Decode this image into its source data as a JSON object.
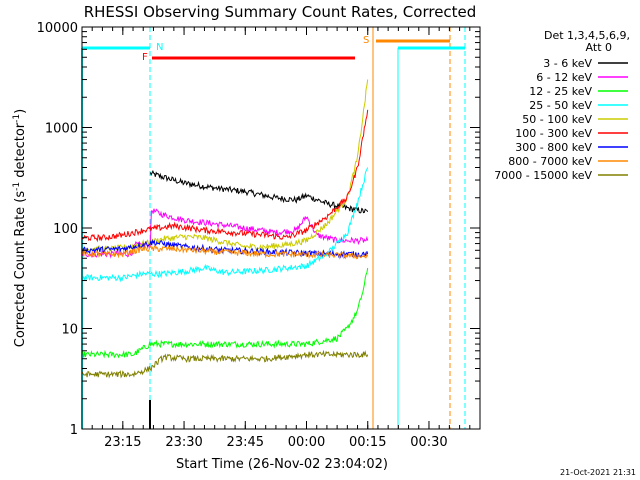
{
  "chart_data": {
    "type": "line",
    "title": "RHESSI Observing Summary Count Rates, Corrected",
    "xlabel": "Start Time (26-Nov-02 23:04:02)",
    "ylabel_main": "Corrected Count Rate (s",
    "ylabel_sup1": "-1",
    "ylabel_mid": " detector",
    "ylabel_sup2": "-1",
    "ylabel_end": ")",
    "y_scale": "log",
    "ylim": [
      1,
      10000
    ],
    "xlim_minutes": [
      0,
      39
    ],
    "x_ticks": [
      {
        "m": 4,
        "label": "23:15"
      },
      {
        "m": 10,
        "label": "23:30"
      },
      {
        "m": 16,
        "label": "23:45"
      },
      {
        "m": 22,
        "label": "00:00"
      },
      {
        "m": 28,
        "label": "00:15"
      },
      {
        "m": 34,
        "label": "00:30"
      }
    ],
    "y_ticks": [
      {
        "v": 1,
        "label": "1"
      },
      {
        "v": 10,
        "label": "10"
      },
      {
        "v": 100,
        "label": "100"
      },
      {
        "v": 1000,
        "label": "1000"
      },
      {
        "v": 10000,
        "label": "10000"
      }
    ],
    "legend_header": [
      "Det 1,3,4,5,6,9,",
      "Att 0"
    ],
    "series": [
      {
        "name": "3 - 6 keV",
        "color": "#000000",
        "points": [
          [
            6.7,
            350
          ],
          [
            8,
            320
          ],
          [
            10,
            280
          ],
          [
            13,
            250
          ],
          [
            16,
            230
          ],
          [
            19,
            200
          ],
          [
            21,
            190
          ],
          [
            22,
            210
          ],
          [
            24,
            175
          ],
          [
            27,
            150
          ],
          [
            28,
            145
          ]
        ]
      },
      {
        "name": "6 - 12 keV",
        "color": "#ff00ff",
        "points": [
          [
            0,
            55
          ],
          [
            4.8,
            55
          ],
          [
            5.2,
            68
          ],
          [
            6.7,
            68
          ],
          [
            6.8,
            150
          ],
          [
            8,
            135
          ],
          [
            10,
            120
          ],
          [
            13,
            110
          ],
          [
            16,
            100
          ],
          [
            19,
            90
          ],
          [
            21,
            95
          ],
          [
            22,
            130
          ],
          [
            23,
            85
          ],
          [
            25,
            75
          ],
          [
            28,
            75
          ]
        ]
      },
      {
        "name": "12 - 25 keV",
        "color": "#00ff00",
        "points": [
          [
            0,
            5.5
          ],
          [
            5,
            5.5
          ],
          [
            6.7,
            7
          ],
          [
            10,
            7
          ],
          [
            16,
            7
          ],
          [
            22,
            7
          ],
          [
            25,
            8
          ],
          [
            26,
            10
          ],
          [
            27,
            15
          ],
          [
            27.6,
            25
          ],
          [
            28,
            40
          ]
        ]
      },
      {
        "name": "25 - 50 keV",
        "color": "#00ffff",
        "points": [
          [
            0,
            32
          ],
          [
            4,
            32
          ],
          [
            6,
            35
          ],
          [
            8,
            35
          ],
          [
            10,
            37
          ],
          [
            12,
            40
          ],
          [
            14,
            36
          ],
          [
            18,
            38
          ],
          [
            22,
            42
          ],
          [
            24,
            55
          ],
          [
            26,
            90
          ],
          [
            27,
            180
          ],
          [
            28,
            400
          ]
        ]
      },
      {
        "name": "50 - 100 keV",
        "color": "#cccc00",
        "points": [
          [
            0,
            62
          ],
          [
            3,
            62
          ],
          [
            5,
            66
          ],
          [
            8,
            78
          ],
          [
            10,
            82
          ],
          [
            12,
            80
          ],
          [
            14,
            72
          ],
          [
            16,
            65
          ],
          [
            18,
            65
          ],
          [
            20,
            68
          ],
          [
            22,
            75
          ],
          [
            24,
            110
          ],
          [
            26,
            200
          ],
          [
            27,
            500
          ],
          [
            28,
            3000
          ]
        ]
      },
      {
        "name": "100 - 300 keV",
        "color": "#ff0000",
        "points": [
          [
            0,
            80
          ],
          [
            2,
            80
          ],
          [
            4,
            85
          ],
          [
            6,
            95
          ],
          [
            9,
            105
          ],
          [
            12,
            95
          ],
          [
            14,
            92
          ],
          [
            16,
            88
          ],
          [
            18,
            85
          ],
          [
            20,
            80
          ],
          [
            22,
            95
          ],
          [
            24,
            130
          ],
          [
            26,
            200
          ],
          [
            27,
            400
          ],
          [
            28,
            1500
          ]
        ]
      },
      {
        "name": "300 - 800 keV",
        "color": "#0000ff",
        "points": [
          [
            0,
            60
          ],
          [
            4,
            62
          ],
          [
            7,
            72
          ],
          [
            10,
            65
          ],
          [
            14,
            60
          ],
          [
            18,
            58
          ],
          [
            22,
            56
          ],
          [
            26,
            55
          ],
          [
            28,
            55
          ]
        ]
      },
      {
        "name": "800 - 7000 keV",
        "color": "#ff8800",
        "points": [
          [
            0,
            55
          ],
          [
            4,
            55
          ],
          [
            6,
            62
          ],
          [
            9,
            62
          ],
          [
            13,
            58
          ],
          [
            18,
            55
          ],
          [
            24,
            54
          ],
          [
            28,
            52
          ]
        ]
      },
      {
        "name": "7000 - 15000 keV",
        "color": "#808000",
        "points": [
          [
            0,
            3.5
          ],
          [
            5,
            3.5
          ],
          [
            6.7,
            4
          ],
          [
            8,
            5.2
          ],
          [
            10,
            5
          ],
          [
            14,
            5
          ],
          [
            18,
            5
          ],
          [
            22,
            5.5
          ],
          [
            26,
            5.5
          ],
          [
            28,
            5.5
          ]
        ]
      }
    ],
    "flags": [
      {
        "label": "N",
        "color": "#00ffff"
      },
      {
        "label": "F",
        "color": "#ff0000"
      },
      {
        "label": "S",
        "color": "#ff8800"
      }
    ],
    "timestamp": "21-Oct-2021 21:31"
  }
}
